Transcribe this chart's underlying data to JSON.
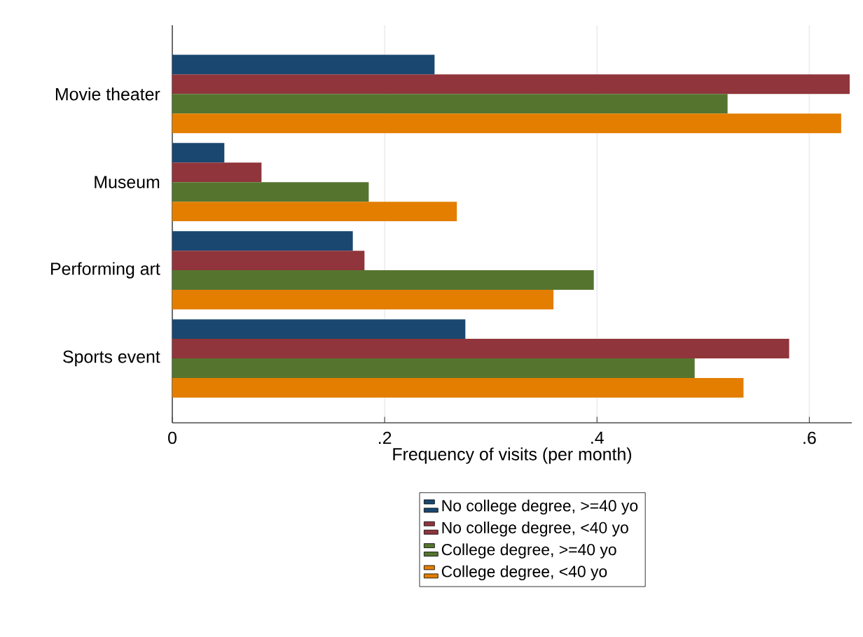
{
  "chart_data": {
    "type": "bar",
    "orientation": "horizontal",
    "categories": [
      "Movie theater",
      "Museum",
      "Performing art",
      "Sports event"
    ],
    "series": [
      {
        "name": "No college degree, >=40 yo",
        "color": "#1a476f",
        "values": [
          0.247,
          0.049,
          0.17,
          0.276
        ]
      },
      {
        "name": "No college degree, <40 yo",
        "color": "#90353b",
        "values": [
          0.638,
          0.084,
          0.181,
          0.581
        ]
      },
      {
        "name": "College degree, >=40 yo",
        "color": "#55752f",
        "values": [
          0.523,
          0.185,
          0.397,
          0.492
        ]
      },
      {
        "name": "College degree, <40 yo",
        "color": "#e37e00",
        "values": [
          0.63,
          0.268,
          0.359,
          0.538
        ]
      }
    ],
    "xlabel": "Frequency of visits (per month)",
    "xlim": [
      0,
      0.64
    ],
    "xticks": [
      0,
      {
        "value": 0.2,
        "label": ".2"
      },
      {
        "value": 0.4,
        "label": ".4"
      },
      {
        "value": 0.6,
        "label": ".6"
      }
    ],
    "grid": "x",
    "legend": "bottom"
  }
}
